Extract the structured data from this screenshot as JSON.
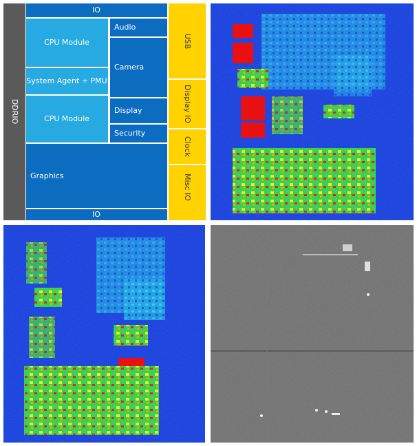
{
  "floorplan": {
    "ddrio": "DDRIO",
    "io_top": "IO",
    "io_bottom": "IO",
    "cpu_module_1": "CPU Module",
    "system_agent": "System Agent + PMU",
    "cpu_module_2": "CPU Module",
    "audio": "Audio",
    "camera": "Camera",
    "display": "Display",
    "security": "Security",
    "graphics": "Graphics",
    "usb": "USB",
    "display_io": "Display IO",
    "clock": "Clock",
    "misc_io": "Misc IO"
  }
}
